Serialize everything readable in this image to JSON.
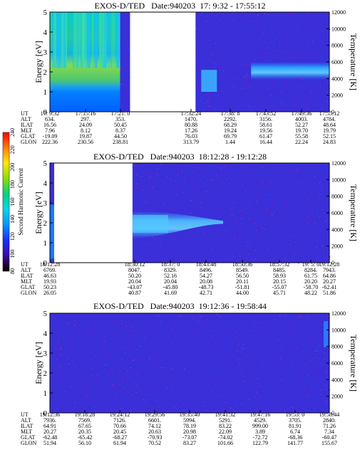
{
  "colorbar": {
    "label": "Second Harmonic Current",
    "ticks": [
      80,
      100,
      120,
      140,
      160,
      180,
      200,
      220,
      240
    ]
  },
  "panels": [
    {
      "title": "EXOS-D/TED   Date:940203  17: 9:32 - 17:55:12",
      "ylabel": "Energy [eV]",
      "ylabel_right": "Temperature [K]",
      "yticks": [
        0,
        1,
        2,
        3,
        4,
        5
      ],
      "yticks_right": [
        0,
        2000,
        4000,
        6000,
        8000,
        10000,
        12000
      ],
      "row_labels": [
        "UT",
        "ALT",
        "ILAT",
        "MLT",
        "GLAT",
        "GLON"
      ],
      "columns": [
        [
          "17: 9:32",
          "634.",
          "16.56",
          "7.96",
          "-19.09",
          "222.36"
        ],
        [
          "17:15:16",
          "297.",
          "24.09",
          "8.12",
          "19.87",
          "230.56"
        ],
        [
          "17:21: 0",
          "353.",
          "50.45",
          "8.37",
          "44.50",
          "238.81"
        ],
        [
          "17:32:24",
          "1470.",
          "80.88",
          "17.26",
          "76.03",
          "313.79"
        ],
        [
          "17:38: 8",
          "2292.",
          "68.29",
          "19.24",
          "69.79",
          "1.44"
        ],
        [
          "17:43:52",
          "3156.",
          "58.61",
          "19.56",
          "61.47",
          "16.44"
        ],
        [
          "17:49:36",
          "4003.",
          "52.27",
          "19.70",
          "55.58",
          "22.24"
        ],
        [
          "17:55:12",
          "4784.",
          "48.64",
          "19.79",
          "52.15",
          "24.83"
        ]
      ]
    },
    {
      "title": "EXOS-D/TED   Date:940203  18:12:28 - 19:12:28",
      "ylabel": "Energy [eV]",
      "ylabel_right": "Temperature [K]",
      "yticks": [
        0,
        1,
        2,
        3,
        4,
        5
      ],
      "yticks_right": [
        0,
        2000,
        4000,
        6000,
        8000,
        10000,
        12000
      ],
      "row_labels": [
        "UT",
        "ALT",
        "ILAT",
        "MLT",
        "GLAT",
        "GLON"
      ],
      "columns": [
        [
          "18:12:28",
          "6769.",
          "46.63",
          "19.93",
          "50.23",
          "26.05"
        ],
        [
          "18:30:12",
          "8047.",
          "50.20",
          "20.04",
          "-43.07",
          "40.87"
        ],
        [
          "18:37: 0",
          "8329.",
          "52.16",
          "20.04",
          "-45.80",
          "41.69"
        ],
        [
          "18:43:48",
          "8496.",
          "54.27",
          "20.08",
          "-48.73",
          "42.71"
        ],
        [
          "18:50:36",
          "8549.",
          "56.50",
          "20.11",
          "-51.81",
          "44.00"
        ],
        [
          "18:57:32",
          "8485.",
          "58.93",
          "20.15",
          "-55.07",
          "45.71"
        ],
        [
          "19: 5: 0",
          "8284.",
          "61.75",
          "20.20",
          "-58.70",
          "48.22"
        ],
        [
          "19:12:28",
          "7943.",
          "64.86",
          "20.27",
          "-62.41",
          "51.86"
        ]
      ]
    },
    {
      "title": "EXOS-D/TED   Date:940203  19:12:36 - 19:58:44",
      "ylabel": "Energy [eV]",
      "ylabel_right": "Temperature [K]",
      "yticks": [
        0,
        1,
        2,
        3,
        4,
        5
      ],
      "yticks_right": [
        0,
        2000,
        4000,
        6000,
        8000,
        10000,
        12000
      ],
      "row_labels": [
        "UT",
        "ALT",
        "ILAT",
        "MLT",
        "GLAT",
        "GLON"
      ],
      "columns": [
        [
          "19:12:36",
          "7936.",
          "64.91",
          "20.27",
          "-62.48",
          "51.94"
        ],
        [
          "19:18:28",
          "7569.",
          "67.65",
          "20.35",
          "-65.42",
          "56.10"
        ],
        [
          "19:24:12",
          "7126.",
          "70.66",
          "20.45",
          "-68.27",
          "61.94"
        ],
        [
          "19:29:56",
          "6601.",
          "74.12",
          "20.63",
          "-70.93",
          "70.52"
        ],
        [
          "19:35:40",
          "5994.",
          "78.19",
          "20.98",
          "-73.07",
          "83.27"
        ],
        [
          "19:41:32",
          "5291.",
          "83.22",
          "22.09",
          "-74.02",
          "101.66"
        ],
        [
          "19:47:16",
          "4529.",
          "999.00",
          "3.89",
          "-72.72",
          "122.79"
        ],
        [
          "19:53: 0",
          "3705.",
          "81.91",
          "6.74",
          "-68.36",
          "141.77"
        ],
        [
          "19:58:44",
          "2840.",
          "71.26",
          "7.34",
          "-60.47",
          "155.67"
        ]
      ]
    }
  ],
  "chart_data": [
    {
      "type": "heatmap",
      "title": "EXOS-D/TED   Date:940203  17: 9:32 - 17:55:12",
      "ylabel": "Energy [eV]",
      "ylabel_right": "Temperature [K]",
      "ylim": [
        0,
        5
      ],
      "ylim_right": [
        0,
        12000
      ],
      "x_start": "17: 9:32",
      "x_end": "17:55:12",
      "data_gap": [
        "17:21: 0",
        "17:32:24"
      ],
      "color_scale": [
        80,
        240
      ],
      "color_label": "Second Harmonic Current"
    },
    {
      "type": "heatmap",
      "title": "EXOS-D/TED   Date:940203  18:12:28 - 19:12:28",
      "ylabel": "Energy [eV]",
      "ylabel_right": "Temperature [K]",
      "ylim": [
        0,
        5
      ],
      "ylim_right": [
        0,
        12000
      ],
      "x_start": "18:12:28",
      "x_end": "19:12:28",
      "data_gap": [
        "18:12:28",
        "18:30:12"
      ],
      "color_scale": [
        80,
        240
      ],
      "color_label": "Second Harmonic Current"
    },
    {
      "type": "heatmap",
      "title": "EXOS-D/TED   Date:940203  19:12:36 - 19:58:44",
      "ylabel": "Energy [eV]",
      "ylabel_right": "Temperature [K]",
      "ylim": [
        0,
        5
      ],
      "ylim_right": [
        0,
        12000
      ],
      "x_start": "19:12:36",
      "x_end": "19:58:44",
      "color_scale": [
        80,
        240
      ],
      "color_label": "Second Harmonic Current"
    }
  ]
}
